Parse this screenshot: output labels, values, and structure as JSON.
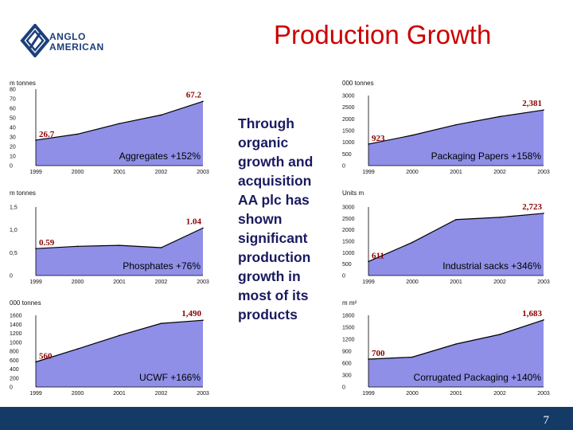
{
  "header": {
    "logo_line1": "ANGLO",
    "logo_line2": "AMERICAN",
    "title": "Production Growth"
  },
  "middle_text": "Through organic growth and acquisition AA plc has shown significant production growth in most of its products",
  "page_number": "7",
  "colors": {
    "fill": "#8f8fe8",
    "line": "#000000",
    "accent": "#cc0000",
    "footer": "#143a66"
  },
  "chart_data": [
    {
      "id": "aggregates",
      "type": "area",
      "unit_label": "m tonnes",
      "categories": [
        "1999",
        "2000",
        "2001",
        "2002",
        "2003"
      ],
      "values": [
        26.7,
        33,
        44,
        53,
        67.2
      ],
      "ylim": [
        0,
        80
      ],
      "yticks": [
        "0",
        "10",
        "20",
        "30",
        "40",
        "50",
        "60",
        "70",
        "80"
      ],
      "ytick_values": [
        0,
        10,
        20,
        30,
        40,
        50,
        60,
        70,
        80
      ],
      "start_label": "26.7",
      "end_label": "67.2",
      "growth_label": "Aggregates +152%"
    },
    {
      "id": "phosphates",
      "type": "area",
      "unit_label": "m tonnes",
      "categories": [
        "1999",
        "2000",
        "2001",
        "2002",
        "2003"
      ],
      "values": [
        0.59,
        0.64,
        0.66,
        0.61,
        1.04
      ],
      "ylim": [
        0,
        1.5
      ],
      "yticks": [
        "0",
        "0,5",
        "1,0",
        "1,5"
      ],
      "ytick_values": [
        0,
        0.5,
        1.0,
        1.5
      ],
      "start_label": "0.59",
      "end_label": "1.04",
      "growth_label": "Phosphates +76%"
    },
    {
      "id": "ucwf",
      "type": "area",
      "unit_label": "000 tonnes",
      "categories": [
        "1999",
        "2000",
        "2001",
        "2002",
        "2003"
      ],
      "values": [
        560,
        850,
        1150,
        1420,
        1490
      ],
      "ylim": [
        0,
        1600
      ],
      "yticks": [
        "0",
        "200",
        "400",
        "600",
        "800",
        "1000",
        "1200",
        "1400",
        "1600"
      ],
      "ytick_values": [
        0,
        200,
        400,
        600,
        800,
        1000,
        1200,
        1400,
        1600
      ],
      "start_label": "560",
      "end_label": "1,490",
      "growth_label": "UCWF +166%"
    },
    {
      "id": "packaging_papers",
      "type": "area",
      "unit_label": "000 tonnes",
      "categories": [
        "1999",
        "2000",
        "2001",
        "2002",
        "2003"
      ],
      "values": [
        923,
        1300,
        1750,
        2100,
        2381
      ],
      "ylim": [
        0,
        3000
      ],
      "yticks": [
        "0",
        "500",
        "1000",
        "1500",
        "2000",
        "2500",
        "3000"
      ],
      "ytick_values": [
        0,
        500,
        1000,
        1500,
        2000,
        2500,
        3000
      ],
      "start_label": "923",
      "end_label": "2,381",
      "growth_label": "Packaging Papers +158%"
    },
    {
      "id": "industrial_sacks",
      "type": "area",
      "unit_label": "Units m",
      "categories": [
        "1999",
        "2000",
        "2001",
        "2002",
        "2003"
      ],
      "values": [
        611,
        1450,
        2450,
        2550,
        2723
      ],
      "ylim": [
        0,
        3000
      ],
      "yticks": [
        "0",
        "500",
        "1000",
        "1500",
        "2000",
        "2500",
        "3000"
      ],
      "ytick_values": [
        0,
        500,
        1000,
        1500,
        2000,
        2500,
        3000
      ],
      "start_label": "611",
      "end_label": "2,723",
      "growth_label": "Industrial sacks +346%"
    },
    {
      "id": "corrugated_packaging",
      "type": "area",
      "unit_label": "m m²",
      "categories": [
        "1999",
        "2000",
        "2001",
        "2002",
        "2003"
      ],
      "values": [
        700,
        750,
        1080,
        1320,
        1683
      ],
      "ylim": [
        0,
        1800
      ],
      "yticks": [
        "0",
        "300",
        "600",
        "900",
        "1200",
        "1500",
        "1800"
      ],
      "ytick_values": [
        0,
        300,
        600,
        900,
        1200,
        1500,
        1800
      ],
      "start_label": "700",
      "end_label": "1,683",
      "growth_label": "Corrugated Packaging +140%"
    }
  ]
}
